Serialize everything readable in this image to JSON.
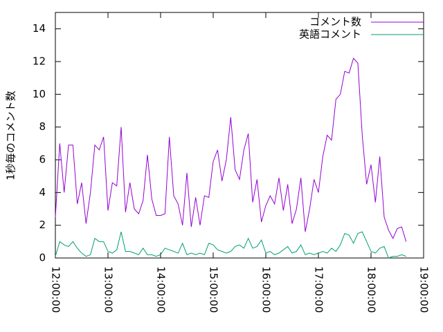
{
  "chart_data": {
    "type": "line",
    "ylabel": "1秒毎のコメント数",
    "x": [
      "12:00:00",
      "12:05:00",
      "12:10:00",
      "12:15:00",
      "12:20:00",
      "12:25:00",
      "12:30:00",
      "12:35:00",
      "12:40:00",
      "12:45:00",
      "12:50:00",
      "12:55:00",
      "13:00:00",
      "13:05:00",
      "13:10:00",
      "13:15:00",
      "13:20:00",
      "13:25:00",
      "13:30:00",
      "13:35:00",
      "13:40:00",
      "13:45:00",
      "13:50:00",
      "13:55:00",
      "14:00:00",
      "14:05:00",
      "14:10:00",
      "14:15:00",
      "14:20:00",
      "14:25:00",
      "14:30:00",
      "14:35:00",
      "14:40:00",
      "14:45:00",
      "14:50:00",
      "14:55:00",
      "15:00:00",
      "15:05:00",
      "15:10:00",
      "15:15:00",
      "15:20:00",
      "15:25:00",
      "15:30:00",
      "15:35:00",
      "15:40:00",
      "15:45:00",
      "15:50:00",
      "15:55:00",
      "16:00:00",
      "16:05:00",
      "16:10:00",
      "16:15:00",
      "16:20:00",
      "16:25:00",
      "16:30:00",
      "16:35:00",
      "16:40:00",
      "16:45:00",
      "16:50:00",
      "16:55:00",
      "17:00:00",
      "17:05:00",
      "17:10:00",
      "17:15:00",
      "17:20:00",
      "17:25:00",
      "17:30:00",
      "17:35:00",
      "17:40:00",
      "17:45:00",
      "17:50:00",
      "17:55:00",
      "18:00:00",
      "18:05:00",
      "18:10:00",
      "18:15:00",
      "18:20:00",
      "18:25:00",
      "18:30:00",
      "18:35:00",
      "18:40:00"
    ],
    "series": [
      {
        "name": "コメント数",
        "color": "#9400d3",
        "values": [
          2.5,
          7.0,
          4.0,
          6.9,
          6.9,
          3.3,
          4.6,
          2.1,
          4.0,
          6.9,
          6.6,
          7.4,
          2.9,
          4.6,
          4.4,
          8.0,
          2.8,
          4.6,
          3.0,
          2.7,
          3.5,
          6.3,
          3.6,
          2.6,
          2.6,
          2.7,
          7.4,
          3.8,
          3.3,
          2.0,
          5.2,
          1.9,
          3.7,
          2.0,
          3.8,
          3.7,
          5.9,
          6.6,
          4.7,
          6.0,
          8.6,
          5.4,
          4.8,
          6.6,
          7.6,
          3.4,
          4.8,
          2.2,
          3.2,
          3.8,
          3.3,
          4.9,
          2.9,
          4.5,
          2.1,
          3.0,
          4.9,
          1.6,
          3.0,
          4.8,
          4.0,
          6.2,
          7.5,
          7.2,
          9.7,
          10.0,
          11.4,
          11.3,
          12.2,
          11.9,
          7.5,
          4.5,
          5.7,
          3.4,
          6.2,
          2.5,
          1.7,
          1.2,
          1.8,
          1.9,
          1.0
        ]
      },
      {
        "name": "英語コメント",
        "color": "#009e73",
        "values": [
          0.1,
          1.0,
          0.8,
          0.7,
          1.0,
          0.6,
          0.3,
          0.1,
          0.2,
          1.2,
          1.0,
          1.0,
          0.4,
          0.3,
          0.5,
          1.6,
          0.4,
          0.4,
          0.3,
          0.2,
          0.6,
          0.2,
          0.2,
          0.1,
          0.2,
          0.6,
          0.5,
          0.4,
          0.3,
          0.9,
          0.2,
          0.3,
          0.2,
          0.3,
          0.2,
          0.9,
          0.8,
          0.5,
          0.4,
          0.3,
          0.4,
          0.7,
          0.8,
          0.6,
          1.2,
          0.6,
          0.7,
          1.1,
          0.3,
          0.4,
          0.2,
          0.3,
          0.5,
          0.7,
          0.3,
          0.4,
          0.8,
          0.2,
          0.3,
          0.2,
          0.3,
          0.4,
          0.3,
          0.6,
          0.4,
          0.8,
          1.5,
          1.4,
          0.9,
          1.5,
          1.6,
          1.0,
          0.4,
          0.3,
          0.6,
          0.7,
          0.0,
          0.1,
          0.1,
          0.2,
          0.1
        ]
      }
    ],
    "xlim": [
      "12:00:00",
      "19:00:00"
    ],
    "xticks": [
      "12:00:00",
      "13:00:00",
      "14:00:00",
      "15:00:00",
      "16:00:00",
      "17:00:00",
      "18:00:00",
      "19:00:00"
    ],
    "ylim": [
      0,
      15
    ],
    "yticks": [
      0,
      2,
      4,
      6,
      8,
      10,
      12,
      14
    ],
    "legend": "top-right"
  }
}
